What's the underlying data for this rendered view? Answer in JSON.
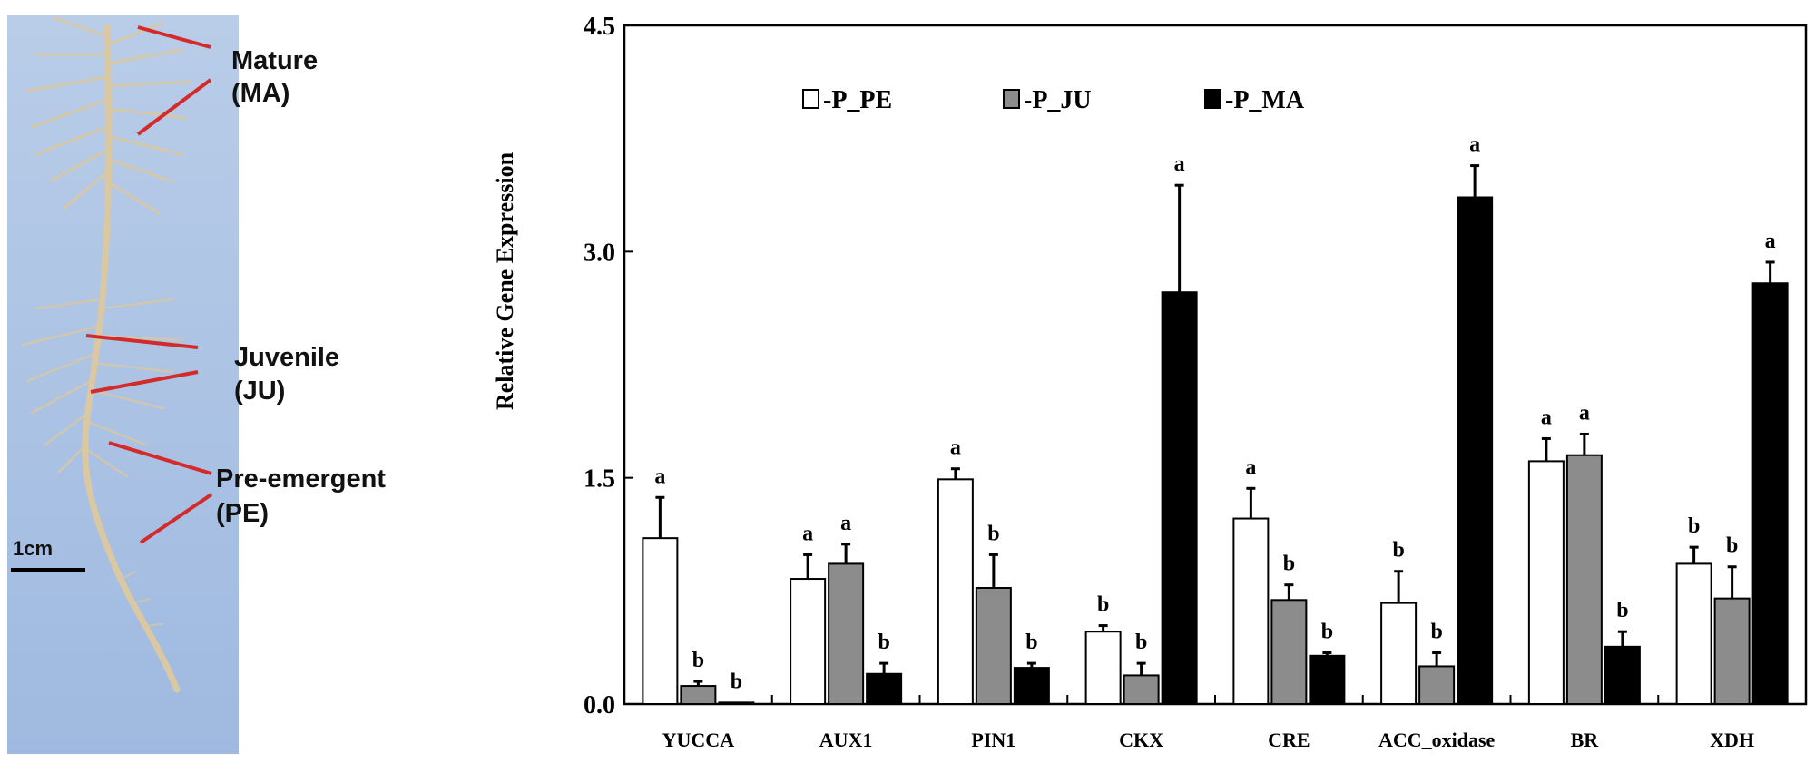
{
  "photo": {
    "labels": [
      {
        "id": "mature",
        "line1": "Mature",
        "line2": "(MA)"
      },
      {
        "id": "juvenile",
        "line1": "Juvenile",
        "line2": "(JU)"
      },
      {
        "id": "pre-emergent",
        "line1": "Pre-emergent",
        "line2": "(PE)"
      }
    ],
    "scale_bar_label": "1cm",
    "colors": {
      "background": "#a9c2e4",
      "root": "#d9c8a2",
      "pointer_line": "#d42a2a"
    }
  },
  "chart_data": {
    "type": "bar",
    "title": "",
    "xlabel": "",
    "ylabel": "Relative Gene Expression",
    "ylim": [
      0,
      4.5
    ],
    "yticks": [
      "0.0",
      "1.5",
      "3.0",
      "4.5"
    ],
    "categories": [
      "YUCCA",
      "AUX1",
      "PIN1",
      "CKX",
      "CRE",
      "ACC_oxidase",
      "BR",
      "XDH"
    ],
    "legend": {
      "position": "top-left",
      "entries": [
        "-P_PE",
        "-P_JU",
        "-P_MA"
      ]
    },
    "series": [
      {
        "name": "-P_PE",
        "color": "#ffffff",
        "values": [
          1.1,
          0.83,
          1.49,
          0.48,
          1.23,
          0.67,
          1.61,
          0.93
        ],
        "errors": [
          0.27,
          0.16,
          0.07,
          0.04,
          0.2,
          0.21,
          0.15,
          0.11
        ],
        "letters": [
          "a",
          "a",
          "a",
          "b",
          "a",
          "b",
          "a",
          "b"
        ]
      },
      {
        "name": "-P_JU",
        "color": "#8c8c8c",
        "values": [
          0.12,
          0.93,
          0.77,
          0.19,
          0.69,
          0.25,
          1.65,
          0.7
        ],
        "errors": [
          0.03,
          0.13,
          0.22,
          0.08,
          0.1,
          0.09,
          0.14,
          0.21
        ],
        "letters": [
          "b",
          "a",
          "b",
          "b",
          "b",
          "b",
          "a",
          "b"
        ]
      },
      {
        "name": "-P_MA",
        "color": "#000000",
        "values": [
          0.01,
          0.2,
          0.24,
          2.73,
          0.32,
          3.36,
          0.38,
          2.79
        ],
        "errors": [
          0.0,
          0.07,
          0.03,
          0.71,
          0.02,
          0.21,
          0.1,
          0.14
        ],
        "letters": [
          "b",
          "b",
          "b",
          "a",
          "b",
          "a",
          "b",
          "a"
        ]
      }
    ],
    "grid": false
  }
}
